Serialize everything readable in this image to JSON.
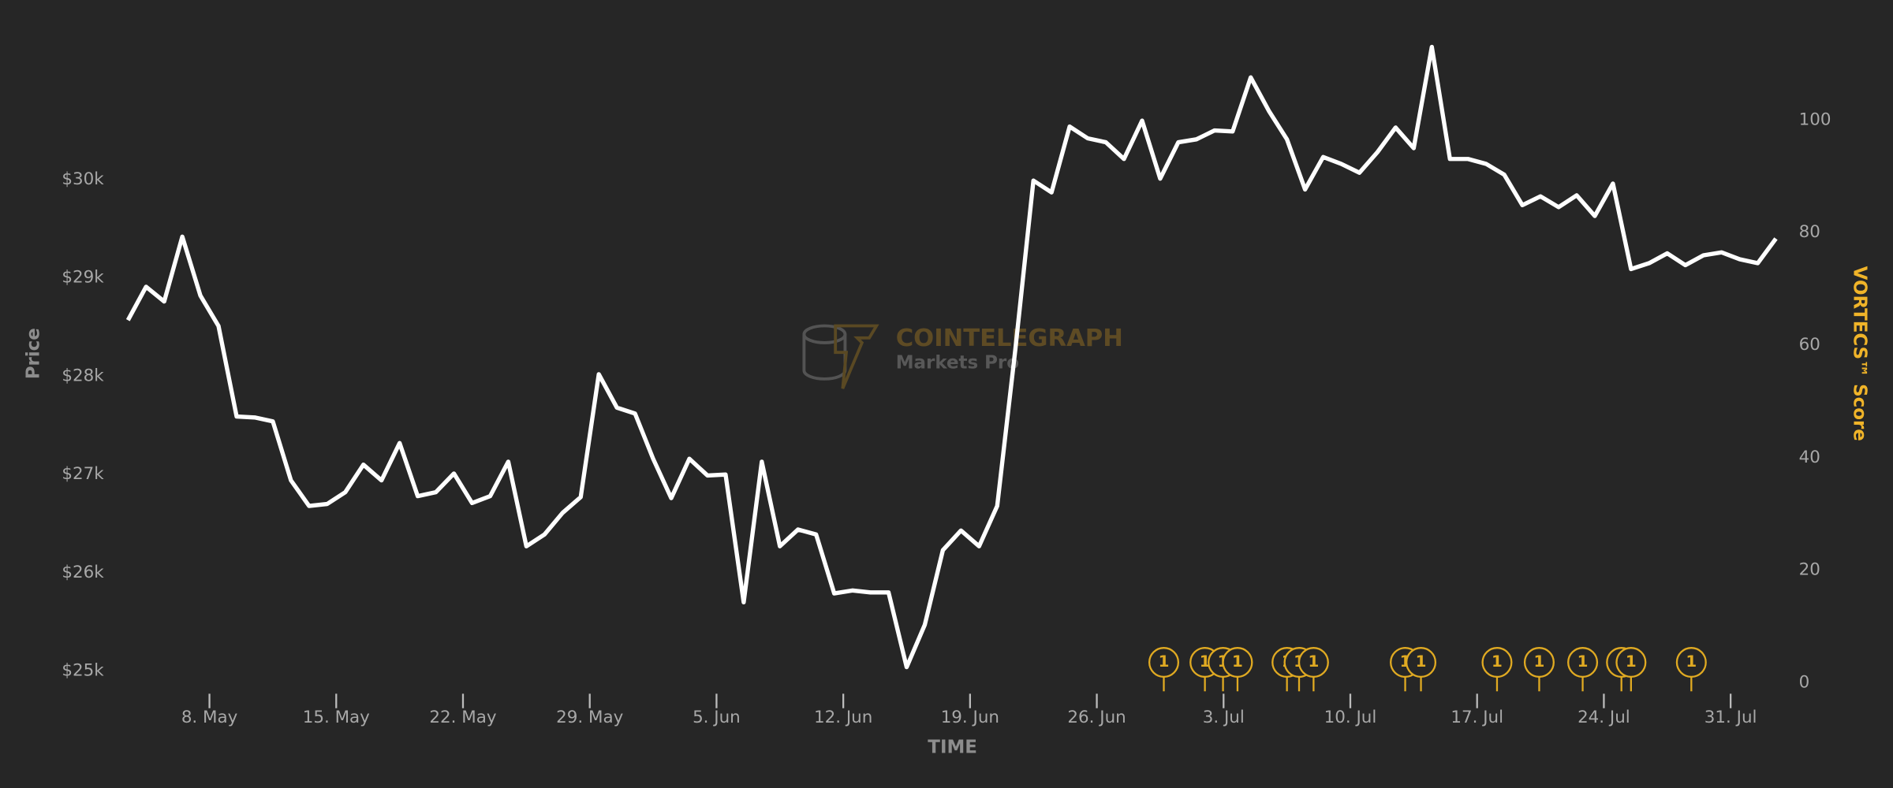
{
  "chart_data": {
    "type": "line",
    "x_label": "TIME",
    "y_label": "Price",
    "y2_label": "VORTECS™ Score",
    "watermark": {
      "brand": "COINTELEGRAPH",
      "product": "Markets Pro"
    },
    "x": [
      3.5,
      4.5,
      5.5,
      6.5,
      7.5,
      8.5,
      9.5,
      10.5,
      11.5,
      12.5,
      13.5,
      14.5,
      15.5,
      16.5,
      17.5,
      18.5,
      19.5,
      20.5,
      21.5,
      22.5,
      23.5,
      24.5,
      25.5,
      26.5,
      27.5,
      28.5,
      29.5,
      30.5,
      31.5,
      32.5,
      33.5,
      34.5,
      35.5,
      36.5,
      37.5,
      38.5,
      39.5,
      40.5,
      41.5,
      42.5,
      43.5,
      44.5,
      45.5,
      46.5,
      47.5,
      48.5,
      49.5,
      50.5,
      51.5,
      52.5,
      53.5,
      54.5,
      55.5,
      56.5,
      57.5,
      58.5,
      59.5,
      60.5,
      61.5,
      62.5,
      63.5,
      64.5,
      65.5,
      66.5,
      67.5,
      68.5,
      69.5,
      70.5,
      71.5,
      72.5,
      73.5,
      74.5,
      75.5,
      76.5,
      77.5,
      78.5,
      79.5,
      80.5,
      81.5,
      82.5,
      83.5,
      84.5,
      85.5,
      86.5,
      87.5,
      88.5,
      89.5,
      90.5,
      91.5,
      92.5,
      93.5,
      94.5
    ],
    "series": [
      {
        "color": "#ffffff",
        "values": [
          28570,
          28910,
          28760,
          29420,
          28820,
          28510,
          27590,
          27580,
          27540,
          26940,
          26680,
          26700,
          26820,
          27100,
          26940,
          27320,
          26780,
          26820,
          27010,
          26710,
          26780,
          27130,
          26270,
          26390,
          26610,
          26770,
          28020,
          27680,
          27620,
          27160,
          26760,
          27160,
          26990,
          27000,
          25700,
          27130,
          26270,
          26440,
          26390,
          25790,
          25820,
          25800,
          25800,
          25040,
          25470,
          26230,
          26430,
          26270,
          26680,
          28270,
          29990,
          29870,
          30540,
          30420,
          30380,
          30210,
          30600,
          30010,
          30380,
          30410,
          30500,
          30490,
          31040,
          30700,
          30410,
          29900,
          30230,
          30160,
          30070,
          30280,
          30530,
          30320,
          31350,
          30210,
          30210,
          30160,
          30050,
          29740,
          29830,
          29720,
          29840,
          29630,
          29960,
          29090,
          29150,
          29250,
          29130,
          29230,
          29260,
          29190,
          29150,
          29400
        ]
      }
    ],
    "events": {
      "color": "#e0aa22",
      "x": [
        60.7,
        62.97,
        63.97,
        64.77,
        67.5,
        68.17,
        68.97,
        74.03,
        74.9,
        79.1,
        81.43,
        83.83,
        85.97,
        86.5,
        89.83
      ],
      "values": [
        1,
        1,
        1,
        1,
        1,
        1,
        1,
        1,
        1,
        1,
        1,
        1,
        1,
        1,
        1
      ]
    },
    "xlim": [
      3.5,
      94.5
    ],
    "xticks": [
      {
        "value": 8,
        "label": "8. May"
      },
      {
        "value": 15,
        "label": "15. May"
      },
      {
        "value": 22,
        "label": "22. May"
      },
      {
        "value": 29,
        "label": "29. May"
      },
      {
        "value": 36,
        "label": "5. Jun"
      },
      {
        "value": 43,
        "label": "12. Jun"
      },
      {
        "value": 50,
        "label": "19. Jun"
      },
      {
        "value": 57,
        "label": "26. Jun"
      },
      {
        "value": 64,
        "label": "3. Jul"
      },
      {
        "value": 71,
        "label": "10. Jul"
      },
      {
        "value": 78,
        "label": "17. Jul"
      },
      {
        "value": 85,
        "label": "24. Jul"
      },
      {
        "value": 92,
        "label": "31. Jul"
      }
    ],
    "ylim": [
      24880,
      31580
    ],
    "yticks": [
      {
        "value": 25000,
        "label": "$25k"
      },
      {
        "value": 26000,
        "label": "$26k"
      },
      {
        "value": 27000,
        "label": "$27k"
      },
      {
        "value": 28000,
        "label": "$28k"
      },
      {
        "value": 29000,
        "label": "$29k"
      },
      {
        "value": 30000,
        "label": "$30k"
      }
    ],
    "y2lim": [
      0,
      117
    ],
    "y2ticks": [
      0,
      20,
      40,
      60,
      80,
      100
    ],
    "grid": false
  }
}
